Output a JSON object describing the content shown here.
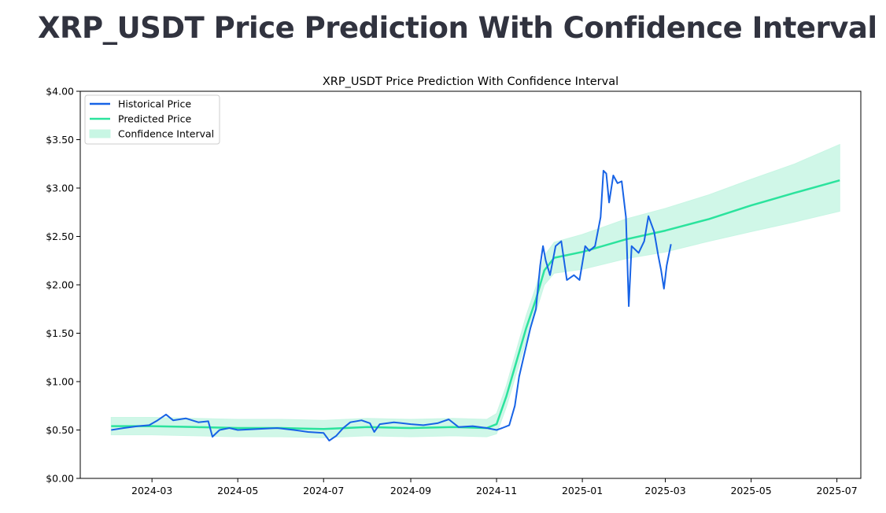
{
  "page": {
    "title": "XRP_USDT Price Prediction With Confidence Interval"
  },
  "colors": {
    "historical": "#1763e6",
    "predicted": "#2be39d",
    "confidence": "#c8f6e4"
  },
  "chart_data": {
    "type": "line",
    "title": "XRP_USDT Price Prediction With Confidence Interval",
    "xlabel": "",
    "ylabel": "",
    "ylim": [
      0,
      4.0
    ],
    "y_ticks": [
      {
        "value": 0.0,
        "label": "$0.00"
      },
      {
        "value": 0.5,
        "label": "$0.50"
      },
      {
        "value": 1.0,
        "label": "$1.00"
      },
      {
        "value": 1.5,
        "label": "$1.50"
      },
      {
        "value": 2.0,
        "label": "$2.00"
      },
      {
        "value": 2.5,
        "label": "$2.50"
      },
      {
        "value": 3.0,
        "label": "$3.00"
      },
      {
        "value": 3.5,
        "label": "$3.50"
      },
      {
        "value": 4.0,
        "label": "$4.00"
      }
    ],
    "xlim": [
      "2024-01-10",
      "2025-07-18"
    ],
    "x_ticks": [
      {
        "date": "2024-03-01",
        "label": "2024-03"
      },
      {
        "date": "2024-05-01",
        "label": "2024-05"
      },
      {
        "date": "2024-07-01",
        "label": "2024-07"
      },
      {
        "date": "2024-09-01",
        "label": "2024-09"
      },
      {
        "date": "2024-11-01",
        "label": "2024-11"
      },
      {
        "date": "2025-01-01",
        "label": "2025-01"
      },
      {
        "date": "2025-03-01",
        "label": "2025-03"
      },
      {
        "date": "2025-05-01",
        "label": "2025-05"
      },
      {
        "date": "2025-07-01",
        "label": "2025-07"
      }
    ],
    "grid": false,
    "legend_position": "top-left",
    "series": [
      {
        "name": "Historical Price",
        "points": [
          {
            "x": "2024-02-01",
            "y": 0.5
          },
          {
            "x": "2024-02-10",
            "y": 0.52
          },
          {
            "x": "2024-02-20",
            "y": 0.54
          },
          {
            "x": "2024-02-28",
            "y": 0.55
          },
          {
            "x": "2024-03-05",
            "y": 0.6
          },
          {
            "x": "2024-03-11",
            "y": 0.66
          },
          {
            "x": "2024-03-16",
            "y": 0.6
          },
          {
            "x": "2024-03-25",
            "y": 0.62
          },
          {
            "x": "2024-04-03",
            "y": 0.58
          },
          {
            "x": "2024-04-10",
            "y": 0.59
          },
          {
            "x": "2024-04-13",
            "y": 0.43
          },
          {
            "x": "2024-04-18",
            "y": 0.5
          },
          {
            "x": "2024-04-25",
            "y": 0.52
          },
          {
            "x": "2024-05-01",
            "y": 0.5
          },
          {
            "x": "2024-05-15",
            "y": 0.51
          },
          {
            "x": "2024-05-29",
            "y": 0.52
          },
          {
            "x": "2024-06-10",
            "y": 0.5
          },
          {
            "x": "2024-06-20",
            "y": 0.48
          },
          {
            "x": "2024-07-01",
            "y": 0.47
          },
          {
            "x": "2024-07-05",
            "y": 0.39
          },
          {
            "x": "2024-07-10",
            "y": 0.44
          },
          {
            "x": "2024-07-15",
            "y": 0.52
          },
          {
            "x": "2024-07-20",
            "y": 0.58
          },
          {
            "x": "2024-07-28",
            "y": 0.6
          },
          {
            "x": "2024-08-03",
            "y": 0.57
          },
          {
            "x": "2024-08-06",
            "y": 0.48
          },
          {
            "x": "2024-08-10",
            "y": 0.56
          },
          {
            "x": "2024-08-20",
            "y": 0.58
          },
          {
            "x": "2024-09-01",
            "y": 0.56
          },
          {
            "x": "2024-09-10",
            "y": 0.55
          },
          {
            "x": "2024-09-20",
            "y": 0.57
          },
          {
            "x": "2024-09-28",
            "y": 0.61
          },
          {
            "x": "2024-10-05",
            "y": 0.53
          },
          {
            "x": "2024-10-15",
            "y": 0.54
          },
          {
            "x": "2024-10-25",
            "y": 0.52
          },
          {
            "x": "2024-11-01",
            "y": 0.5
          },
          {
            "x": "2024-11-05",
            "y": 0.52
          },
          {
            "x": "2024-11-10",
            "y": 0.55
          },
          {
            "x": "2024-11-14",
            "y": 0.75
          },
          {
            "x": "2024-11-17",
            "y": 1.05
          },
          {
            "x": "2024-11-21",
            "y": 1.3
          },
          {
            "x": "2024-11-25",
            "y": 1.55
          },
          {
            "x": "2024-11-29",
            "y": 1.75
          },
          {
            "x": "2024-12-02",
            "y": 2.2
          },
          {
            "x": "2024-12-04",
            "y": 2.4
          },
          {
            "x": "2024-12-06",
            "y": 2.25
          },
          {
            "x": "2024-12-09",
            "y": 2.1
          },
          {
            "x": "2024-12-13",
            "y": 2.4
          },
          {
            "x": "2024-12-17",
            "y": 2.45
          },
          {
            "x": "2024-12-21",
            "y": 2.05
          },
          {
            "x": "2024-12-26",
            "y": 2.1
          },
          {
            "x": "2024-12-30",
            "y": 2.05
          },
          {
            "x": "2025-01-03",
            "y": 2.4
          },
          {
            "x": "2025-01-06",
            "y": 2.35
          },
          {
            "x": "2025-01-10",
            "y": 2.4
          },
          {
            "x": "2025-01-14",
            "y": 2.7
          },
          {
            "x": "2025-01-16",
            "y": 3.18
          },
          {
            "x": "2025-01-18",
            "y": 3.15
          },
          {
            "x": "2025-01-20",
            "y": 2.85
          },
          {
            "x": "2025-01-23",
            "y": 3.13
          },
          {
            "x": "2025-01-26",
            "y": 3.05
          },
          {
            "x": "2025-01-29",
            "y": 3.07
          },
          {
            "x": "2025-02-01",
            "y": 2.7
          },
          {
            "x": "2025-02-03",
            "y": 1.78
          },
          {
            "x": "2025-02-05",
            "y": 2.4
          },
          {
            "x": "2025-02-10",
            "y": 2.33
          },
          {
            "x": "2025-02-14",
            "y": 2.45
          },
          {
            "x": "2025-02-17",
            "y": 2.71
          },
          {
            "x": "2025-02-21",
            "y": 2.55
          },
          {
            "x": "2025-02-24",
            "y": 2.3
          },
          {
            "x": "2025-02-26",
            "y": 2.15
          },
          {
            "x": "2025-02-28",
            "y": 1.96
          },
          {
            "x": "2025-03-02",
            "y": 2.2
          },
          {
            "x": "2025-03-05",
            "y": 2.42
          }
        ]
      },
      {
        "name": "Predicted Price",
        "points": [
          {
            "x": "2024-02-01",
            "y": 0.54
          },
          {
            "x": "2024-03-01",
            "y": 0.54
          },
          {
            "x": "2024-04-01",
            "y": 0.53
          },
          {
            "x": "2024-05-01",
            "y": 0.52
          },
          {
            "x": "2024-06-01",
            "y": 0.52
          },
          {
            "x": "2024-07-01",
            "y": 0.51
          },
          {
            "x": "2024-08-01",
            "y": 0.53
          },
          {
            "x": "2024-09-01",
            "y": 0.52
          },
          {
            "x": "2024-10-01",
            "y": 0.53
          },
          {
            "x": "2024-10-25",
            "y": 0.52
          },
          {
            "x": "2024-11-01",
            "y": 0.56
          },
          {
            "x": "2024-11-08",
            "y": 0.85
          },
          {
            "x": "2024-11-15",
            "y": 1.2
          },
          {
            "x": "2024-11-22",
            "y": 1.55
          },
          {
            "x": "2024-11-29",
            "y": 1.85
          },
          {
            "x": "2024-12-05",
            "y": 2.15
          },
          {
            "x": "2024-12-12",
            "y": 2.28
          },
          {
            "x": "2025-01-01",
            "y": 2.34
          },
          {
            "x": "2025-02-01",
            "y": 2.47
          },
          {
            "x": "2025-03-01",
            "y": 2.56
          },
          {
            "x": "2025-04-01",
            "y": 2.68
          },
          {
            "x": "2025-05-01",
            "y": 2.82
          },
          {
            "x": "2025-06-01",
            "y": 2.95
          },
          {
            "x": "2025-07-03",
            "y": 3.08
          }
        ]
      },
      {
        "name": "Confidence Interval",
        "band": [
          {
            "x": "2024-02-01",
            "low": 0.45,
            "high": 0.63
          },
          {
            "x": "2024-03-01",
            "low": 0.45,
            "high": 0.63
          },
          {
            "x": "2024-04-01",
            "low": 0.44,
            "high": 0.62
          },
          {
            "x": "2024-05-01",
            "low": 0.43,
            "high": 0.61
          },
          {
            "x": "2024-06-01",
            "low": 0.43,
            "high": 0.61
          },
          {
            "x": "2024-07-01",
            "low": 0.42,
            "high": 0.6
          },
          {
            "x": "2024-08-01",
            "low": 0.44,
            "high": 0.62
          },
          {
            "x": "2024-09-01",
            "low": 0.43,
            "high": 0.61
          },
          {
            "x": "2024-10-01",
            "low": 0.44,
            "high": 0.62
          },
          {
            "x": "2024-10-25",
            "low": 0.43,
            "high": 0.61
          },
          {
            "x": "2024-11-01",
            "low": 0.46,
            "high": 0.67
          },
          {
            "x": "2024-11-08",
            "low": 0.74,
            "high": 0.96
          },
          {
            "x": "2024-11-15",
            "low": 1.08,
            "high": 1.32
          },
          {
            "x": "2024-11-22",
            "low": 1.42,
            "high": 1.68
          },
          {
            "x": "2024-11-29",
            "low": 1.72,
            "high": 1.98
          },
          {
            "x": "2024-12-05",
            "low": 2.0,
            "high": 2.3
          },
          {
            "x": "2024-12-12",
            "low": 2.12,
            "high": 2.44
          },
          {
            "x": "2025-01-01",
            "low": 2.16,
            "high": 2.52
          },
          {
            "x": "2025-02-01",
            "low": 2.27,
            "high": 2.68
          },
          {
            "x": "2025-03-01",
            "low": 2.34,
            "high": 2.79
          },
          {
            "x": "2025-04-01",
            "low": 2.45,
            "high": 2.93
          },
          {
            "x": "2025-05-01",
            "low": 2.55,
            "high": 3.09
          },
          {
            "x": "2025-06-01",
            "low": 2.65,
            "high": 3.25
          },
          {
            "x": "2025-07-03",
            "low": 2.76,
            "high": 3.45
          }
        ]
      }
    ]
  }
}
